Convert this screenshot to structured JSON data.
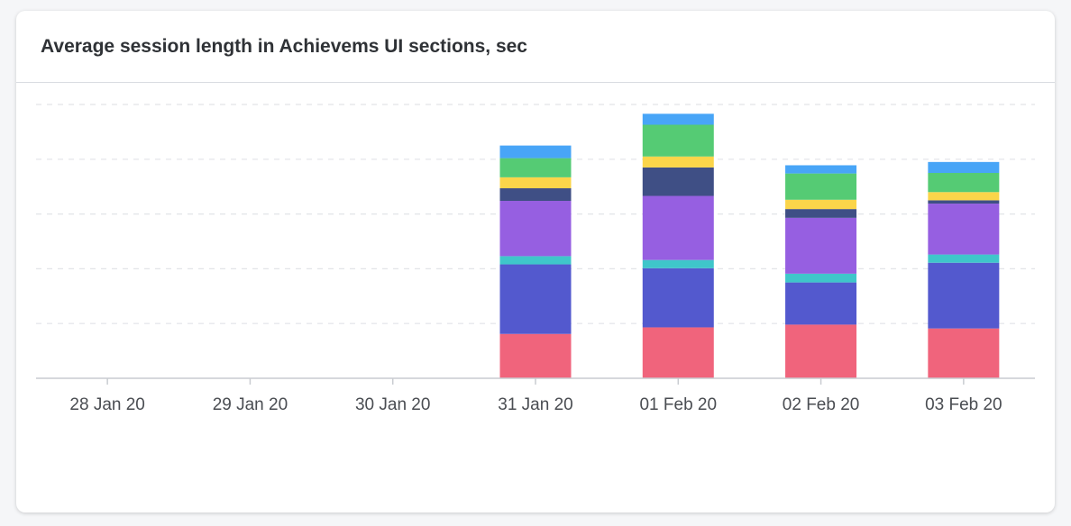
{
  "card": {
    "title": "Average session length in Achievems UI sections, sec"
  },
  "chart_data": {
    "type": "bar",
    "stacked": true,
    "title": "Average session length in Achievems UI sections, sec",
    "categories": [
      "28 Jan 20",
      "29 Jan 20",
      "30 Jan 20",
      "31 Jan 20",
      "01 Feb 20",
      "02 Feb 20",
      "03 Feb 20"
    ],
    "ylim": [
      0,
      5
    ],
    "grid": true,
    "legend": "none",
    "series": [
      {
        "color": "#f0647c",
        "values": [
          0,
          0,
          0,
          0.81,
          0.93,
          0.98,
          0.91
        ]
      },
      {
        "color": "#5359ce",
        "values": [
          0,
          0,
          0,
          1.27,
          1.08,
          0.77,
          1.2
        ]
      },
      {
        "color": "#3fc6ca",
        "values": [
          0,
          0,
          0,
          0.15,
          0.15,
          0.16,
          0.15
        ]
      },
      {
        "color": "#965fe1",
        "values": [
          0,
          0,
          0,
          1.01,
          1.17,
          1.02,
          0.93
        ]
      },
      {
        "color": "#3f4f85",
        "values": [
          0,
          0,
          0,
          0.23,
          0.52,
          0.16,
          0.06
        ]
      },
      {
        "color": "#fbd54a",
        "values": [
          0,
          0,
          0,
          0.2,
          0.2,
          0.17,
          0.15
        ]
      },
      {
        "color": "#55cb74",
        "values": [
          0,
          0,
          0,
          0.35,
          0.58,
          0.48,
          0.35
        ]
      },
      {
        "color": "#48a5f7",
        "values": [
          0,
          0,
          0,
          0.23,
          0.2,
          0.15,
          0.2
        ]
      }
    ]
  }
}
